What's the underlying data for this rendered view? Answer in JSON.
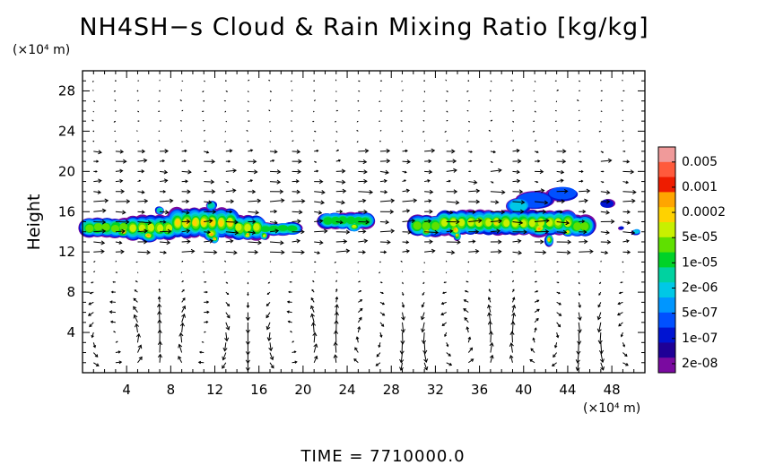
{
  "chart_data": {
    "type": "heatmap",
    "title": "NH4SH−s Cloud & Rain Mixing Ratio [kg/kg]",
    "ylabel": "Height",
    "yunit": "(×10⁴ m)",
    "xunit": "(×10⁴ m)",
    "xlim": [
      0,
      51
    ],
    "ylim": [
      0,
      30
    ],
    "x_ticks": [
      "4",
      "8",
      "12",
      "16",
      "20",
      "24",
      "28",
      "32",
      "36",
      "40",
      "44",
      "48"
    ],
    "x_tick_values": [
      4,
      8,
      12,
      16,
      20,
      24,
      28,
      32,
      36,
      40,
      44,
      48
    ],
    "y_ticks": [
      "4",
      "8",
      "12",
      "16",
      "20",
      "24",
      "28"
    ],
    "y_tick_values": [
      4,
      8,
      12,
      16,
      20,
      24,
      28
    ],
    "time_text": "TIME  =  7710000.0",
    "colorbar": {
      "labels": [
        "0.005",
        "0.001",
        "0.0002",
        "5e-05",
        "1e-05",
        "2e-06",
        "5e-07",
        "1e-07",
        "2e-08"
      ],
      "colors": [
        "#f09a9a",
        "#ff5a3c",
        "#ee1c00",
        "#ffa500",
        "#ffd200",
        "#c8f000",
        "#5fe000",
        "#00d228",
        "#00d2a0",
        "#00c8e6",
        "#0096ff",
        "#0050ff",
        "#0014d2",
        "#1e0096",
        "#7a0aa0"
      ]
    },
    "cloud_regions": [
      {
        "x_range": [
          0.2,
          19.5
        ],
        "y_range": [
          13.1,
          17.2
        ],
        "max_mixing_ratio": "0.0002"
      },
      {
        "x_range": [
          21.8,
          26.6
        ],
        "y_range": [
          13.9,
          16.2
        ],
        "max_mixing_ratio": "1e-05"
      },
      {
        "x_range": [
          30.0,
          49.5
        ],
        "y_range": [
          12.7,
          18.6
        ],
        "max_mixing_ratio": "0.0002"
      }
    ],
    "wind_vectors": "arrow field overlay",
    "grid": false
  }
}
